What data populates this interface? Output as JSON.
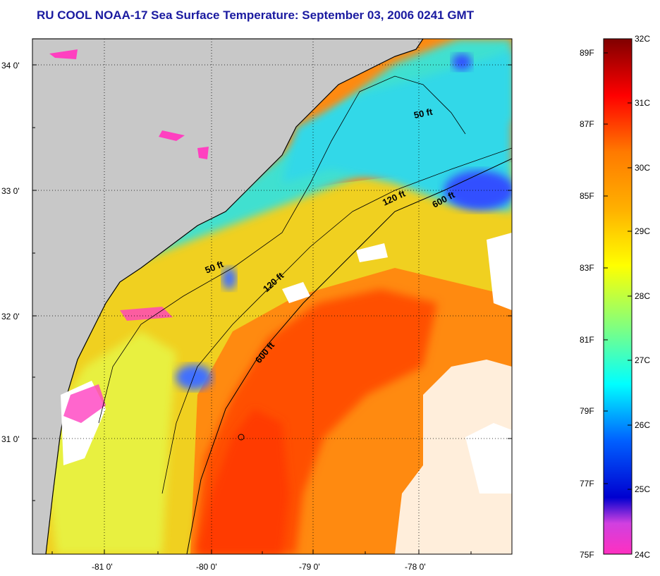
{
  "title": "RU COOL  NOAA-17  Sea Surface Temperature:  September 03, 2006 0241 GMT",
  "map": {
    "lat_labels": [
      "34 0'",
      "33 0'",
      "32 0'",
      "31 0'"
    ],
    "lon_labels": [
      "-81 0'",
      "-80 0'",
      "-79 0'",
      "-78 0'"
    ],
    "contour_labels": [
      "50 ft",
      "120 ft",
      "600 ft",
      "50 ft",
      "120 ft",
      "600 ft"
    ]
  },
  "colorbar": {
    "fahrenheit_labels": [
      "89F",
      "87F",
      "85F",
      "83F",
      "81F",
      "79F",
      "77F",
      "75F"
    ],
    "celsius_labels": [
      "32C",
      "31C",
      "30C",
      "29C",
      "28C",
      "27C",
      "26C",
      "25C",
      "24C"
    ],
    "colors": {
      "32C": "#800000",
      "31C": "#ff0000",
      "30C": "#ff7a00",
      "29C": "#ffff00",
      "28C": "#80ff80",
      "27C": "#00ffff",
      "26C": "#0060ff",
      "25C": "#0000d0",
      "24C": "#ff30c0"
    }
  },
  "colors": {
    "land": "#c8c8c8",
    "cloud": "#ffffff",
    "title": "#1a1aa0"
  }
}
